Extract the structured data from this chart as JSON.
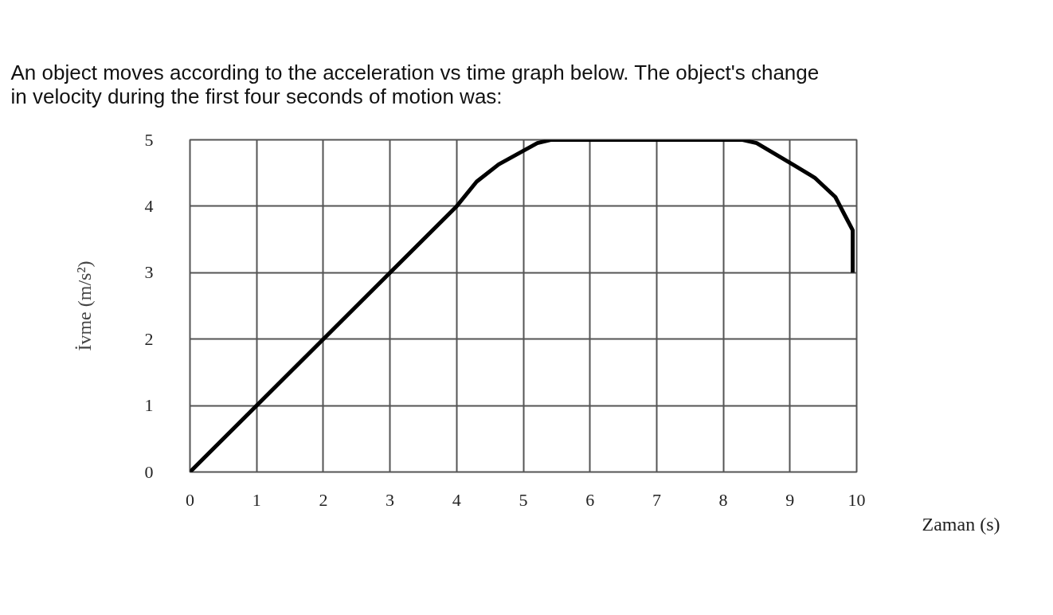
{
  "chart_data": {
    "type": "line",
    "title": "An object moves according to the acceleration vs time graph below.  The object's change in velocity during the first four seconds of motion was:",
    "xlabel": "Zaman (s)",
    "ylabel": "İvme (m/s²)",
    "x": [
      0,
      4,
      4.3,
      4.63,
      5.21,
      5.41,
      8.29,
      8.5,
      9.04,
      9.37,
      9.68,
      9.82,
      9.94,
      9.94
    ],
    "series": [
      {
        "color": "#000000",
        "values": [
          0,
          4,
          4.37,
          4.63,
          4.95,
          5,
          5,
          4.95,
          4.63,
          4.43,
          4.14,
          3.87,
          3.64,
          3
        ]
      }
    ],
    "xlim": [
      0,
      10
    ],
    "ylim": [
      0,
      5
    ],
    "xticks": [
      0,
      1,
      2,
      3,
      4,
      5,
      6,
      7,
      8,
      9,
      10
    ],
    "yticks": [
      0,
      1,
      2,
      3,
      4,
      5
    ],
    "grid": true,
    "marker": "none",
    "line_style": "solid"
  }
}
